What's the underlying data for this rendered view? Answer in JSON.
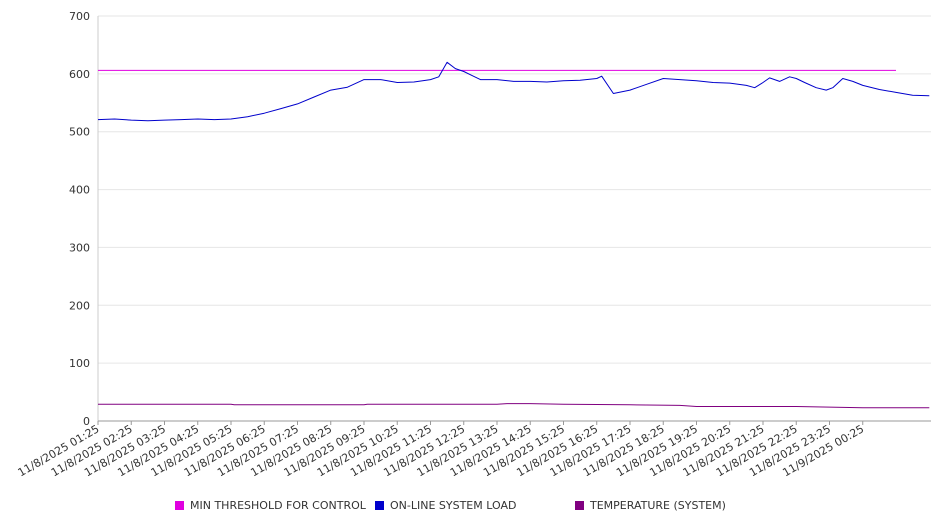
{
  "chart_data": {
    "type": "line",
    "title": "",
    "xlabel": "",
    "ylabel": "",
    "ylim": [
      0,
      700
    ],
    "yticks": [
      0,
      100,
      200,
      300,
      400,
      500,
      600,
      700
    ],
    "grid": "horizontal",
    "legend_position": "bottom",
    "x_tick_labels": [
      "11/8/2025 01:25",
      "11/8/2025 02:25",
      "11/8/2025 03:25",
      "11/8/2025 04:25",
      "11/8/2025 05:25",
      "11/8/2025 06:25",
      "11/8/2025 07:25",
      "11/8/2025 08:25",
      "11/8/2025 09:25",
      "11/8/2025 10:25",
      "11/8/2025 11:25",
      "11/8/2025 12:25",
      "11/8/2025 13:25",
      "11/8/2025 14:25",
      "11/8/2025 15:25",
      "11/8/2025 16:25",
      "11/8/2025 17:25",
      "11/8/2025 18:25",
      "11/8/2025 19:25",
      "11/8/2025 20:25",
      "11/8/2025 21:25",
      "11/8/2025 22:25",
      "11/8/2025 23:25",
      "11/9/2025 00:25"
    ],
    "series": [
      {
        "name": "MIN THRESHOLD FOR CONTROL",
        "color": "#e000e0",
        "points": [
          [
            0,
            606
          ],
          [
            24,
            606
          ]
        ]
      },
      {
        "name": "ON-LINE SYSTEM LOAD",
        "color": "#0000cc",
        "points": [
          [
            0,
            521
          ],
          [
            0.5,
            522
          ],
          [
            1,
            520
          ],
          [
            1.5,
            519
          ],
          [
            2,
            520
          ],
          [
            2.5,
            521
          ],
          [
            3,
            522
          ],
          [
            3.5,
            521
          ],
          [
            4,
            522
          ],
          [
            4.5,
            526
          ],
          [
            5,
            532
          ],
          [
            5.5,
            540
          ],
          [
            6,
            548
          ],
          [
            6.5,
            560
          ],
          [
            7,
            572
          ],
          [
            7.5,
            577
          ],
          [
            8,
            590
          ],
          [
            8.5,
            590
          ],
          [
            9,
            585
          ],
          [
            9.5,
            586
          ],
          [
            10,
            590
          ],
          [
            10.25,
            595
          ],
          [
            10.5,
            620
          ],
          [
            10.75,
            609
          ],
          [
            11,
            604
          ],
          [
            11.25,
            597
          ],
          [
            11.5,
            590
          ],
          [
            12,
            590
          ],
          [
            12.5,
            587
          ],
          [
            13,
            587
          ],
          [
            13.5,
            586
          ],
          [
            14,
            588
          ],
          [
            14.5,
            589
          ],
          [
            15,
            592
          ],
          [
            15.15,
            596
          ],
          [
            15.5,
            566
          ],
          [
            16,
            572
          ],
          [
            16.5,
            582
          ],
          [
            17,
            592
          ],
          [
            17.5,
            590
          ],
          [
            18,
            588
          ],
          [
            18.5,
            585
          ],
          [
            19,
            584
          ],
          [
            19.5,
            580
          ],
          [
            19.75,
            576
          ],
          [
            20,
            585
          ],
          [
            20.2,
            593
          ],
          [
            20.5,
            587
          ],
          [
            20.8,
            595
          ],
          [
            21,
            592
          ],
          [
            21.25,
            585
          ],
          [
            21.6,
            576
          ],
          [
            21.9,
            572
          ],
          [
            22.1,
            576
          ],
          [
            22.4,
            592
          ],
          [
            22.7,
            587
          ],
          [
            23,
            580
          ],
          [
            23.5,
            573
          ],
          [
            24,
            568
          ],
          [
            24.5,
            563
          ],
          [
            25,
            562
          ]
        ]
      },
      {
        "name": "TEMPERATURE (SYSTEM)",
        "color": "#800080",
        "points": [
          [
            0,
            29
          ],
          [
            4,
            29
          ],
          [
            4.1,
            28
          ],
          [
            8,
            28
          ],
          [
            8.1,
            29
          ],
          [
            12,
            29
          ],
          [
            12.3,
            30
          ],
          [
            13,
            30
          ],
          [
            14,
            29
          ],
          [
            16,
            28
          ],
          [
            17.5,
            27
          ],
          [
            18,
            25
          ],
          [
            21,
            25
          ],
          [
            22,
            24
          ],
          [
            23,
            23
          ],
          [
            25,
            23
          ]
        ]
      }
    ]
  }
}
